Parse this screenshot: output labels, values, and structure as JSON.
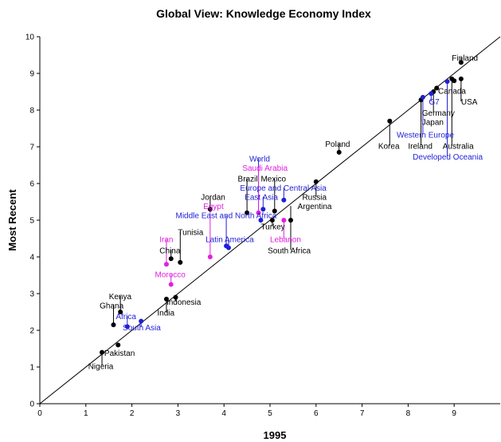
{
  "chart_data": {
    "type": "scatter",
    "title": "Global View: Knowledge Economy Index",
    "xlabel": "1995",
    "ylabel": "Most Recent",
    "xlim": [
      0,
      10
    ],
    "ylim": [
      0,
      10
    ],
    "x_ticks": [
      "0",
      "1",
      "2",
      "3",
      "4",
      "5",
      "6",
      "7",
      "8",
      "9"
    ],
    "y_ticks": [
      "0",
      "1",
      "2",
      "3",
      "4",
      "5",
      "6",
      "7",
      "8",
      "9",
      "10"
    ],
    "grid": false,
    "reference_line": "45-degree diagonal",
    "colors": {
      "country": "#000000",
      "region": "#1f1fd6",
      "highlight": "#e020e0"
    },
    "points": [
      {
        "x": 9.15,
        "y": 9.3,
        "group": "country"
      },
      {
        "x": 9.15,
        "y": 8.85,
        "group": "country"
      },
      {
        "x": 9.0,
        "y": 8.8,
        "group": "country"
      },
      {
        "x": 8.95,
        "y": 8.85,
        "group": "country"
      },
      {
        "x": 8.62,
        "y": 8.6,
        "group": "country"
      },
      {
        "x": 8.55,
        "y": 8.5,
        "group": "country"
      },
      {
        "x": 8.28,
        "y": 8.28,
        "group": "country"
      },
      {
        "x": 8.32,
        "y": 8.35,
        "group": "region"
      },
      {
        "x": 8.5,
        "y": 8.45,
        "group": "region"
      },
      {
        "x": 8.85,
        "y": 8.78,
        "group": "region"
      },
      {
        "x": 7.6,
        "y": 7.7,
        "group": "country"
      },
      {
        "x": 6.5,
        "y": 6.85,
        "group": "country"
      },
      {
        "x": 6.0,
        "y": 6.05,
        "group": "country"
      },
      {
        "x": 5.45,
        "y": 5.0,
        "group": "country"
      },
      {
        "x": 5.05,
        "y": 5.0,
        "group": "country"
      },
      {
        "x": 5.1,
        "y": 5.25,
        "group": "country"
      },
      {
        "x": 4.5,
        "y": 5.2,
        "group": "country"
      },
      {
        "x": 4.8,
        "y": 5.0,
        "group": "region"
      },
      {
        "x": 4.85,
        "y": 5.3,
        "group": "region"
      },
      {
        "x": 5.3,
        "y": 5.55,
        "group": "region"
      },
      {
        "x": 5.3,
        "y": 5.0,
        "group": "highlight"
      },
      {
        "x": 4.75,
        "y": 5.2,
        "group": "highlight"
      },
      {
        "x": 4.05,
        "y": 4.3,
        "group": "region"
      },
      {
        "x": 4.1,
        "y": 4.25,
        "group": "region"
      },
      {
        "x": 3.7,
        "y": 5.3,
        "group": "country"
      },
      {
        "x": 3.7,
        "y": 4.0,
        "group": "highlight"
      },
      {
        "x": 3.05,
        "y": 3.85,
        "group": "country"
      },
      {
        "x": 2.85,
        "y": 3.95,
        "group": "country"
      },
      {
        "x": 2.75,
        "y": 3.8,
        "group": "highlight"
      },
      {
        "x": 2.85,
        "y": 3.25,
        "group": "highlight"
      },
      {
        "x": 2.75,
        "y": 2.85,
        "group": "country"
      },
      {
        "x": 2.95,
        "y": 2.9,
        "group": "country"
      },
      {
        "x": 2.2,
        "y": 2.25,
        "group": "region"
      },
      {
        "x": 1.9,
        "y": 2.1,
        "group": "region"
      },
      {
        "x": 1.6,
        "y": 2.15,
        "group": "country"
      },
      {
        "x": 1.75,
        "y": 2.5,
        "group": "country"
      },
      {
        "x": 1.7,
        "y": 1.6,
        "group": "country"
      },
      {
        "x": 1.35,
        "y": 1.4,
        "group": "country"
      }
    ],
    "labels": [
      {
        "text": "Finland",
        "x": 8.95,
        "y": 9.35,
        "lx": 9.15,
        "ly": 9.3,
        "group": "country"
      },
      {
        "text": "Canada",
        "x": 8.65,
        "y": 8.45,
        "lx": 8.62,
        "ly": 8.6,
        "group": "country"
      },
      {
        "text": "USA",
        "x": 9.15,
        "y": 8.15,
        "lx": 9.15,
        "ly": 8.85,
        "group": "country"
      },
      {
        "text": "G7",
        "x": 8.45,
        "y": 8.15,
        "lx": 8.5,
        "ly": 8.45,
        "group": "region"
      },
      {
        "text": "Germany",
        "x": 8.3,
        "y": 7.85,
        "lx": 8.55,
        "ly": 8.5,
        "group": "country"
      },
      {
        "text": "Japan",
        "x": 8.3,
        "y": 7.6,
        "lx": 8.28,
        "ly": 8.28,
        "group": "country"
      },
      {
        "text": "Western Europe",
        "x": 7.75,
        "y": 7.25,
        "lx": 8.32,
        "ly": 8.35,
        "group": "region"
      },
      {
        "text": "Korea",
        "x": 7.35,
        "y": 6.95,
        "lx": 7.6,
        "ly": 7.7,
        "group": "country"
      },
      {
        "text": "Ireland",
        "x": 8.0,
        "y": 6.95,
        "lx": 8.28,
        "ly": 8.28,
        "group": "country"
      },
      {
        "text": "Australia",
        "x": 8.75,
        "y": 6.95,
        "lx": 8.95,
        "ly": 8.85,
        "group": "country"
      },
      {
        "text": "Developed Oceania",
        "x": 8.1,
        "y": 6.65,
        "lx": 8.85,
        "ly": 8.78,
        "group": "region"
      },
      {
        "text": "Poland",
        "x": 6.2,
        "y": 7.0,
        "lx": 6.5,
        "ly": 6.85,
        "group": "country"
      },
      {
        "text": "World",
        "x": 4.55,
        "y": 6.6,
        "lx": 4.75,
        "ly": 5.2,
        "group": "region"
      },
      {
        "text": "Saudi Arabia",
        "x": 4.4,
        "y": 6.35,
        "lx": 4.75,
        "ly": 5.2,
        "group": "highlight"
      },
      {
        "text": "Brazil",
        "x": 4.3,
        "y": 6.05,
        "lx": 4.5,
        "ly": 5.2,
        "group": "country"
      },
      {
        "text": "Mexico",
        "x": 4.8,
        "y": 6.05,
        "lx": 5.1,
        "ly": 5.25,
        "group": "country"
      },
      {
        "text": "Europe and Central Asia",
        "x": 4.35,
        "y": 5.8,
        "lx": 5.3,
        "ly": 5.55,
        "group": "region"
      },
      {
        "text": "East Asia",
        "x": 4.45,
        "y": 5.55,
        "lx": 4.85,
        "ly": 5.3,
        "group": "region"
      },
      {
        "text": "Jordan",
        "x": 3.5,
        "y": 5.55,
        "lx": 3.7,
        "ly": 5.3,
        "group": "country"
      },
      {
        "text": "Egypt",
        "x": 3.55,
        "y": 5.3,
        "lx": 3.7,
        "ly": 4.0,
        "group": "highlight"
      },
      {
        "text": "Middle East and North Africa",
        "x": 2.95,
        "y": 5.05,
        "lx": 4.05,
        "ly": 4.3,
        "group": "region"
      },
      {
        "text": "Russia",
        "x": 5.7,
        "y": 5.55,
        "lx": 6.0,
        "ly": 6.05,
        "group": "country"
      },
      {
        "text": "Argentina",
        "x": 5.6,
        "y": 5.3,
        "lx": 5.45,
        "ly": 5.0,
        "group": "country"
      },
      {
        "text": "Turkey",
        "x": 4.8,
        "y": 4.75,
        "lx": 5.05,
        "ly": 5.0,
        "group": "country"
      },
      {
        "text": "Tunisia",
        "x": 3.0,
        "y": 4.6,
        "lx": 3.05,
        "ly": 3.85,
        "group": "country"
      },
      {
        "text": "Latin America",
        "x": 3.6,
        "y": 4.4,
        "lx": 4.1,
        "ly": 4.25,
        "group": "region"
      },
      {
        "text": "Lebanon",
        "x": 5.0,
        "y": 4.4,
        "lx": 5.3,
        "ly": 5.0,
        "group": "highlight"
      },
      {
        "text": "Iran",
        "x": 2.6,
        "y": 4.4,
        "lx": 2.75,
        "ly": 3.8,
        "group": "highlight"
      },
      {
        "text": "China",
        "x": 2.6,
        "y": 4.1,
        "lx": 2.85,
        "ly": 3.95,
        "group": "country"
      },
      {
        "text": "South Africa",
        "x": 4.95,
        "y": 4.1,
        "lx": 5.45,
        "ly": 5.0,
        "group": "country"
      },
      {
        "text": "Morocco",
        "x": 2.5,
        "y": 3.45,
        "lx": 2.85,
        "ly": 3.25,
        "group": "highlight"
      },
      {
        "text": "Indonesia",
        "x": 2.75,
        "y": 2.7,
        "lx": 2.95,
        "ly": 2.9,
        "group": "country"
      },
      {
        "text": "India",
        "x": 2.55,
        "y": 2.4,
        "lx": 2.75,
        "ly": 2.85,
        "group": "country"
      },
      {
        "text": "Kenya",
        "x": 1.5,
        "y": 2.85,
        "lx": 1.75,
        "ly": 2.5,
        "group": "country"
      },
      {
        "text": "Ghana",
        "x": 1.3,
        "y": 2.6,
        "lx": 1.6,
        "ly": 2.15,
        "group": "country"
      },
      {
        "text": "Africa",
        "x": 1.65,
        "y": 2.3,
        "lx": 1.9,
        "ly": 2.1,
        "group": "region"
      },
      {
        "text": "South Asia",
        "x": 1.8,
        "y": 2.0,
        "lx": 2.2,
        "ly": 2.25,
        "group": "region"
      },
      {
        "text": "Pakistan",
        "x": 1.4,
        "y": 1.3,
        "lx": 1.35,
        "ly": 1.4,
        "group": "country"
      },
      {
        "text": "Nigeria",
        "x": 1.05,
        "y": 0.95,
        "lx": 1.35,
        "ly": 1.4,
        "group": "country"
      }
    ]
  }
}
